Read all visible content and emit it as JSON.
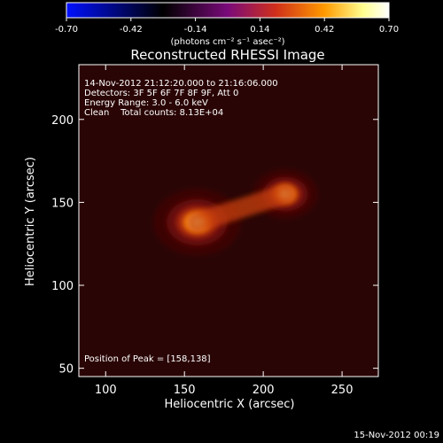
{
  "chart_data": {
    "type": "heatmap",
    "title": "Reconstructed RHESSI Image",
    "xlabel": "Heliocentric X (arcsec)",
    "ylabel": "Heliocentric Y (arcsec)",
    "xlim": [
      83,
      273
    ],
    "ylim": [
      45,
      233
    ],
    "x_ticks": [
      100,
      150,
      200,
      250
    ],
    "y_ticks": [
      50,
      100,
      150,
      200
    ],
    "colorbar": {
      "min": -0.7,
      "max": 0.7,
      "ticks": [
        "-0.70",
        "-0.42",
        "-0.14",
        "0.14",
        "0.42",
        "0.70"
      ],
      "unit_label": "(photons cm⁻² s⁻¹ asec⁻²)",
      "colors": [
        "#0010ff",
        "#000000",
        "#7a0a7a",
        "#d0301a",
        "#ff9a00",
        "#ffff90",
        "#ffffff"
      ]
    },
    "annotations": [
      "14-Nov-2012 21:12:20.000 to 21:16:06.000",
      "Detectors: 3F 5F 6F 7F 8F 9F, Att 0",
      "Energy Range: 3.0 - 6.0 keV",
      "Clean    Total counts: 8.13E+04"
    ],
    "peak_label": "Position of Peak = [158,138]",
    "sources": [
      {
        "x": 158,
        "y": 138,
        "amplitude": 0.7
      },
      {
        "x": 214,
        "y": 155,
        "amplitude": 0.52
      }
    ]
  },
  "footer": {
    "timestamp": "15-Nov-2012 00:19"
  }
}
